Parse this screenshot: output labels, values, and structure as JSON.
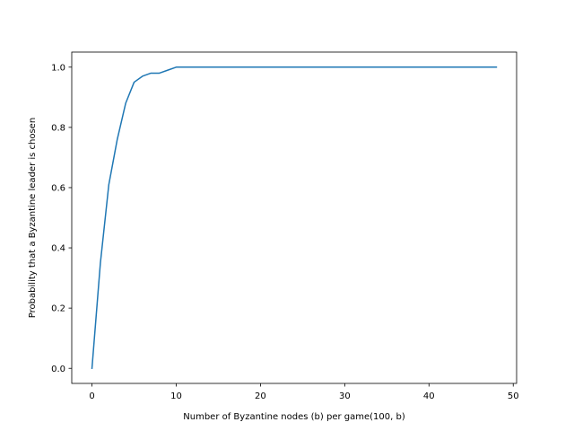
{
  "chart_data": {
    "type": "line",
    "title": "",
    "xlabel": "Number of Byzantine nodes (b) per game(100, b)",
    "ylabel": "Probability that a Byzantine leader is chosen",
    "xlim": [
      -2.4,
      50.4
    ],
    "ylim": [
      -0.05,
      1.05
    ],
    "xticks": [
      0,
      10,
      20,
      30,
      40,
      50
    ],
    "yticks": [
      0.0,
      0.2,
      0.4,
      0.6,
      0.8,
      1.0
    ],
    "xtick_labels": [
      "0",
      "10",
      "20",
      "30",
      "40",
      "50"
    ],
    "ytick_labels": [
      "0.0",
      "0.2",
      "0.4",
      "0.6",
      "0.8",
      "1.0"
    ],
    "grid": false,
    "series": [
      {
        "color": "#1f77b4",
        "x": [
          0,
          1,
          2,
          3,
          4,
          5,
          6,
          7,
          8,
          9,
          10,
          11,
          12,
          13,
          14,
          15,
          16,
          17,
          18,
          19,
          20,
          21,
          22,
          23,
          24,
          25,
          26,
          27,
          28,
          29,
          30,
          31,
          32,
          33,
          34,
          35,
          36,
          37,
          38,
          39,
          40,
          41,
          42,
          43,
          44,
          45,
          46,
          47,
          48
        ],
        "values": [
          0.0,
          0.35,
          0.61,
          0.76,
          0.88,
          0.95,
          0.97,
          0.98,
          0.98,
          0.99,
          1.0,
          1.0,
          1.0,
          1.0,
          1.0,
          1.0,
          1.0,
          1.0,
          1.0,
          1.0,
          1.0,
          1.0,
          1.0,
          1.0,
          1.0,
          1.0,
          1.0,
          1.0,
          1.0,
          1.0,
          1.0,
          1.0,
          1.0,
          1.0,
          1.0,
          1.0,
          1.0,
          1.0,
          1.0,
          1.0,
          1.0,
          1.0,
          1.0,
          1.0,
          1.0,
          1.0,
          1.0,
          1.0,
          1.0
        ]
      }
    ]
  }
}
